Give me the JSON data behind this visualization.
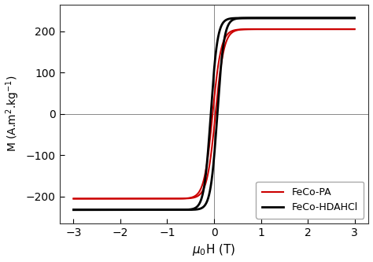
{
  "title": "",
  "xlabel": "$\\mu_0$H (T)",
  "ylabel": "M (A.m$^2$.kg$^{-1}$)",
  "xlim": [
    -3.3,
    3.3
  ],
  "ylim": [
    -265,
    265
  ],
  "xticks": [
    -3,
    -2,
    -1,
    0,
    1,
    2,
    3
  ],
  "yticks": [
    -200,
    -100,
    0,
    100,
    200
  ],
  "color_pa": "#cc0000",
  "color_hda": "#000000",
  "label_pa": "FeCo-PA",
  "label_hda": "FeCo-HDAHCl",
  "Ms_pa": 205,
  "Ms_hda": 232,
  "Hc_pa": 0.03,
  "Hc_hda": 0.07,
  "slope_pa": 5.5,
  "slope_hda": 7.0,
  "background_color": "#ffffff",
  "legend_loc": "lower right",
  "lw_pa": 1.5,
  "lw_hda": 2.0
}
